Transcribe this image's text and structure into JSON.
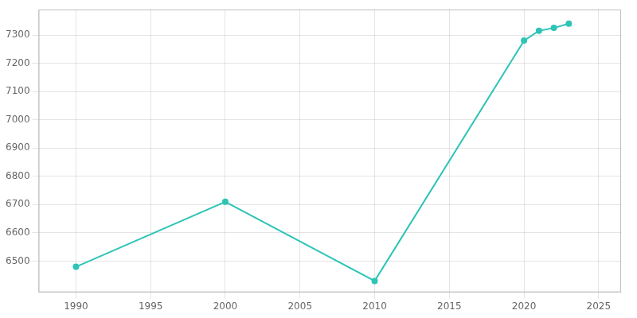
{
  "chart_data": {
    "type": "line",
    "x": [
      1990,
      2000,
      2010,
      2020,
      2021,
      2022,
      2023
    ],
    "values": [
      6480,
      6710,
      6430,
      7280,
      7315,
      7325,
      7340
    ],
    "color": "#2ec4b6",
    "marker": "circle",
    "xlim": [
      1987.5,
      2026.5
    ],
    "xticks": [
      1990,
      1995,
      2000,
      2005,
      2010,
      2015,
      2020,
      2025
    ],
    "ylim": [
      6390,
      7390
    ],
    "yticks": [
      6500,
      6600,
      6700,
      6800,
      6900,
      7000,
      7100,
      7200,
      7300
    ],
    "grid": true
  }
}
